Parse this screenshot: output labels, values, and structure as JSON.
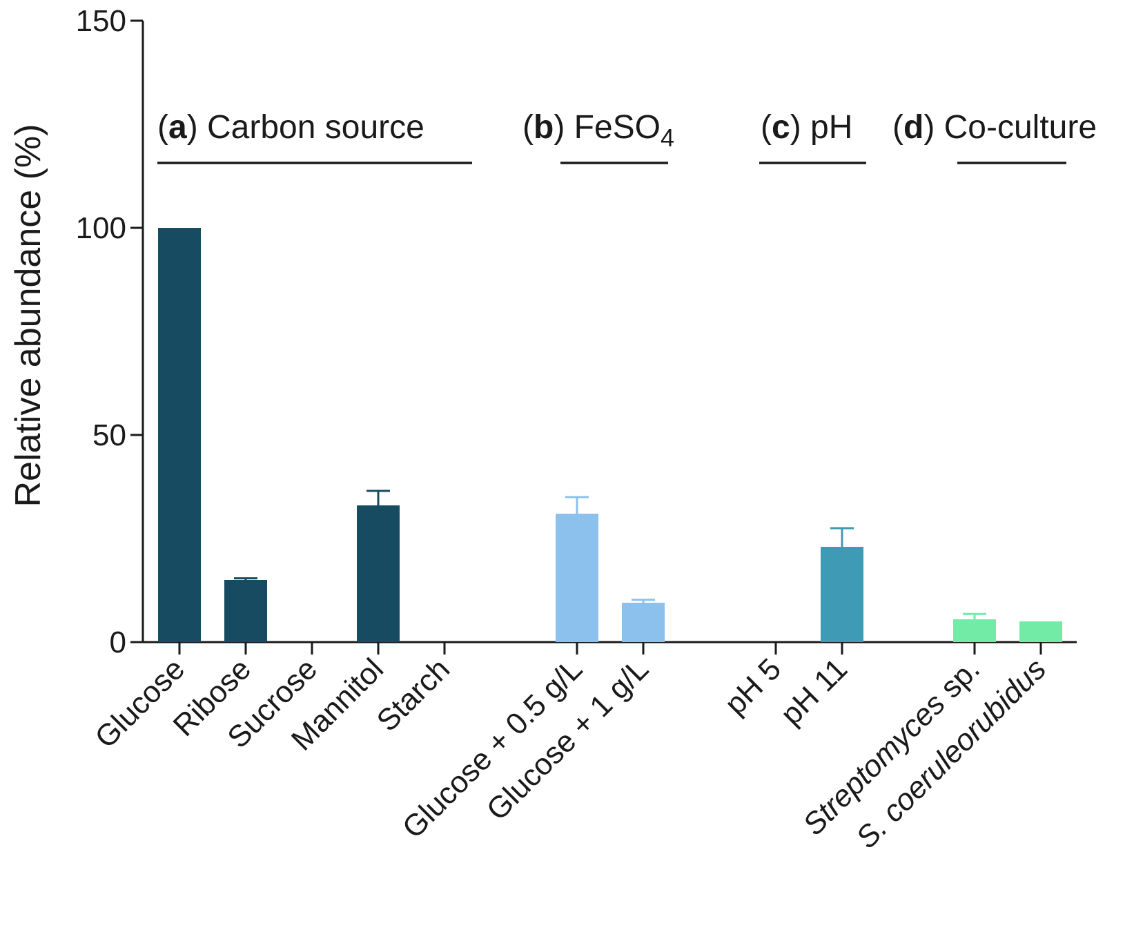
{
  "chart_data": {
    "type": "bar",
    "ylabel": "Relative abundance (%)",
    "ylim": [
      0,
      150
    ],
    "yticks": [
      0,
      50,
      100,
      150
    ],
    "groups": [
      {
        "id": "a",
        "label": "Carbon source",
        "color": "#174b61",
        "start": 0,
        "end": 4
      },
      {
        "id": "b",
        "label": "FeSO",
        "sub": "4",
        "color": "#8cc1ee",
        "start": 5,
        "end": 6
      },
      {
        "id": "c",
        "label": "pH",
        "color": "#3f9ab5",
        "start": 7,
        "end": 8
      },
      {
        "id": "d",
        "label": "Co-culture",
        "color": "#72eba7",
        "start": 9,
        "end": 10
      }
    ],
    "categories": [
      {
        "label": "Glucose",
        "value": 100,
        "error": 0,
        "group": "a"
      },
      {
        "label": "Ribose",
        "value": 15,
        "error": 0.4,
        "group": "a"
      },
      {
        "label": "Sucrose",
        "value": 0,
        "error": 0,
        "group": "a"
      },
      {
        "label": "Mannitol",
        "value": 33,
        "error": 3.5,
        "group": "a"
      },
      {
        "label": "Starch",
        "value": 0,
        "error": 0,
        "group": "a"
      },
      {
        "label": "Glucose + 0.5 g/L",
        "value": 31,
        "error": 4,
        "group": "b"
      },
      {
        "label": "Glucose + 1 g/L",
        "value": 9.5,
        "error": 0.7,
        "group": "b"
      },
      {
        "label": "pH 5",
        "value": 0,
        "error": 0,
        "group": "c"
      },
      {
        "label": "pH 11",
        "value": 23,
        "error": 4.5,
        "group": "c"
      },
      {
        "label": "Streptomyces sp.",
        "value": 5.5,
        "error": 1.3,
        "group": "d",
        "italic": "Streptomyces",
        "normal": " sp."
      },
      {
        "label": "S. coeruleorubidus",
        "value": 5,
        "error": 0,
        "group": "d",
        "italic": "S. coeruleorubidus",
        "normal": ""
      }
    ]
  }
}
